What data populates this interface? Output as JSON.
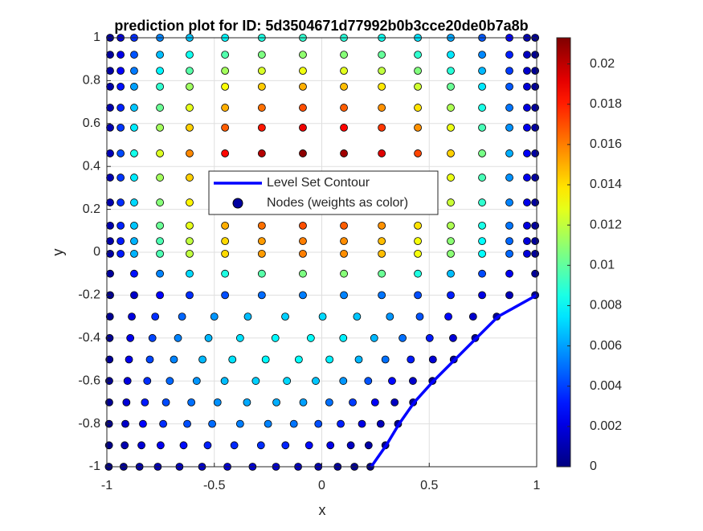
{
  "chart_data": {
    "type": "scatter",
    "title": "prediction plot for ID: 5d3504671d77992b0b3cce20de0b7a8b",
    "x_label": "x",
    "y_label": "y",
    "xlim": [
      -1,
      1
    ],
    "ylim": [
      -1,
      1
    ],
    "xticks": [
      -1,
      -0.5,
      0,
      0.5,
      1
    ],
    "yticks": [
      -1,
      -0.8,
      -0.6,
      -0.4,
      -0.2,
      0,
      0.2,
      0.4,
      0.6,
      0.8,
      1
    ],
    "grid": true,
    "colormap": "jet",
    "clim": [
      0,
      0.0213
    ],
    "colorbar_ticks": [
      0,
      0.002,
      0.004,
      0.006,
      0.008,
      0.01,
      0.012,
      0.014,
      0.016,
      0.018,
      0.02
    ],
    "legend_position": "upper center",
    "series": [
      {
        "name": "Level Set Contour",
        "type": "line",
        "color": "#0000ff",
        "x": [
          1,
          0.82,
          0.72,
          0.62,
          0.52,
          0.43,
          0.36,
          0.3,
          0.23
        ],
        "y": [
          -0.2,
          -0.3,
          -0.4,
          -0.5,
          -0.6,
          -0.7,
          -0.8,
          -0.9,
          -1
        ]
      },
      {
        "name": "Nodes (weights as color)",
        "type": "scatter",
        "color": "#0000a0",
        "x": [
          -0.985,
          -0.936,
          -0.873,
          -0.753,
          -0.615,
          -0.45,
          -0.279,
          -0.088,
          0.103,
          0.279,
          0.447,
          0.6,
          0.746,
          0.873,
          0.955,
          0.993,
          -0.985,
          -0.936,
          -0.873,
          -0.753,
          -0.615,
          -0.45,
          -0.279,
          -0.088,
          0.103,
          0.279,
          0.447,
          0.6,
          0.746,
          0.873,
          0.955,
          0.993,
          -0.985,
          -0.936,
          -0.873,
          -0.753,
          -0.615,
          -0.45,
          -0.279,
          -0.088,
          0.103,
          0.279,
          0.447,
          0.6,
          0.746,
          0.873,
          0.955,
          0.993,
          -0.985,
          -0.936,
          -0.873,
          -0.753,
          -0.615,
          -0.45,
          -0.279,
          -0.088,
          0.103,
          0.279,
          0.447,
          0.6,
          0.746,
          0.873,
          0.955,
          0.993,
          -0.985,
          -0.936,
          -0.873,
          -0.753,
          -0.615,
          -0.45,
          -0.279,
          -0.088,
          0.103,
          0.279,
          0.447,
          0.6,
          0.746,
          0.873,
          0.955,
          0.993,
          -0.985,
          -0.936,
          -0.873,
          -0.753,
          -0.615,
          -0.45,
          -0.279,
          -0.088,
          0.103,
          0.279,
          0.447,
          0.6,
          0.746,
          0.873,
          0.955,
          0.993,
          -0.985,
          -0.936,
          -0.873,
          -0.753,
          -0.615,
          -0.45,
          -0.279,
          -0.088,
          0.103,
          0.279,
          0.447,
          0.6,
          0.746,
          0.873,
          0.955,
          0.993,
          -0.985,
          -0.936,
          -0.873,
          -0.753,
          -0.615,
          -0.45,
          -0.279,
          -0.088,
          0.103,
          0.279,
          0.447,
          0.6,
          0.746,
          0.873,
          0.955,
          0.993,
          -0.985,
          -0.936,
          -0.873,
          -0.753,
          -0.615,
          -0.45,
          -0.279,
          -0.088,
          0.103,
          0.279,
          0.447,
          0.6,
          0.746,
          0.873,
          0.955,
          0.993,
          -0.985,
          -0.936,
          -0.873,
          -0.753,
          -0.615,
          -0.45,
          -0.279,
          -0.088,
          0.103,
          0.279,
          0.447,
          0.6,
          0.746,
          0.873,
          0.955,
          0.993,
          -0.985,
          -0.936,
          -0.873,
          -0.753,
          -0.615,
          -0.45,
          -0.279,
          -0.088,
          0.103,
          0.279,
          0.447,
          0.6,
          0.746,
          0.873,
          0.955,
          0.993,
          -0.985,
          -0.936,
          -0.873,
          -0.753,
          -0.615,
          -0.45,
          -0.279,
          -0.088,
          0.103,
          0.279,
          0.447,
          0.6,
          0.746,
          0.873,
          0.955,
          0.993,
          -0.985,
          -0.873,
          -0.753,
          -0.615,
          -0.45,
          -0.279,
          -0.088,
          0.103,
          0.279,
          0.447,
          0.6,
          0.746,
          0.873,
          0.993,
          -0.985,
          -0.873,
          -0.753,
          -0.615,
          -0.45,
          -0.279,
          -0.088,
          0.103,
          0.279,
          0.447,
          0.6,
          0.746,
          0.873,
          0.993,
          -0.986,
          -0.884,
          -0.775,
          -0.65,
          -0.5,
          -0.344,
          -0.17,
          0.004,
          0.164,
          0.317,
          0.456,
          0.589,
          0.704,
          0.814,
          -0.987,
          -0.891,
          -0.788,
          -0.669,
          -0.527,
          -0.38,
          -0.216,
          -0.051,
          0.1,
          0.244,
          0.376,
          0.502,
          0.611,
          0.714,
          -0.988,
          -0.897,
          -0.8,
          -0.688,
          -0.555,
          -0.416,
          -0.261,
          -0.107,
          0.036,
          0.172,
          0.296,
          0.414,
          0.517,
          0.614,
          -0.989,
          -0.904,
          -0.812,
          -0.707,
          -0.582,
          -0.452,
          -0.307,
          -0.162,
          -0.028,
          0.1,
          0.216,
          0.327,
          0.424,
          0.515,
          -0.989,
          -0.909,
          -0.823,
          -0.725,
          -0.607,
          -0.485,
          -0.348,
          -0.211,
          -0.086,
          0.035,
          0.144,
          0.248,
          0.339,
          0.425,
          -0.99,
          -0.914,
          -0.832,
          -0.738,
          -0.626,
          -0.51,
          -0.38,
          -0.25,
          -0.13,
          -0.016,
          0.088,
          0.187,
          0.274,
          0.355,
          -0.99,
          -0.917,
          -0.839,
          -0.75,
          -0.643,
          -0.531,
          -0.407,
          -0.283,
          -0.169,
          -0.059,
          0.04,
          0.135,
          0.218,
          0.296,
          -0.991,
          -0.922,
          -0.848,
          -0.763,
          -0.662,
          -0.557,
          -0.439,
          -0.322,
          -0.213,
          -0.11,
          -0.016,
          0.074,
          0.152,
          0.226
        ],
        "y": [
          1,
          1,
          1,
          1,
          1,
          1,
          1,
          1,
          1,
          1,
          1,
          1,
          1,
          1,
          1,
          1,
          0.921,
          0.921,
          0.921,
          0.921,
          0.921,
          0.921,
          0.921,
          0.921,
          0.921,
          0.921,
          0.921,
          0.921,
          0.921,
          0.921,
          0.921,
          0.921,
          0.846,
          0.846,
          0.846,
          0.846,
          0.846,
          0.846,
          0.846,
          0.846,
          0.846,
          0.846,
          0.846,
          0.846,
          0.846,
          0.846,
          0.846,
          0.846,
          0.772,
          0.772,
          0.772,
          0.772,
          0.772,
          0.772,
          0.772,
          0.772,
          0.772,
          0.772,
          0.772,
          0.772,
          0.772,
          0.772,
          0.772,
          0.772,
          0.674,
          0.674,
          0.674,
          0.674,
          0.674,
          0.674,
          0.674,
          0.674,
          0.674,
          0.674,
          0.674,
          0.674,
          0.674,
          0.674,
          0.674,
          0.674,
          0.581,
          0.581,
          0.581,
          0.581,
          0.581,
          0.581,
          0.581,
          0.581,
          0.581,
          0.581,
          0.581,
          0.581,
          0.581,
          0.581,
          0.581,
          0.581,
          0.461,
          0.461,
          0.461,
          0.461,
          0.461,
          0.461,
          0.461,
          0.461,
          0.461,
          0.461,
          0.461,
          0.461,
          0.461,
          0.461,
          0.461,
          0.461,
          0.348,
          0.348,
          0.348,
          0.348,
          0.348,
          0.348,
          0.348,
          0.348,
          0.348,
          0.348,
          0.348,
          0.348,
          0.348,
          0.348,
          0.348,
          0.348,
          0.232,
          0.232,
          0.232,
          0.232,
          0.232,
          0.232,
          0.232,
          0.232,
          0.232,
          0.232,
          0.232,
          0.232,
          0.232,
          0.232,
          0.232,
          0.232,
          0.124,
          0.124,
          0.124,
          0.124,
          0.124,
          0.124,
          0.124,
          0.124,
          0.124,
          0.124,
          0.124,
          0.124,
          0.124,
          0.124,
          0.124,
          0.124,
          0.052,
          0.052,
          0.052,
          0.052,
          0.052,
          0.052,
          0.052,
          0.052,
          0.052,
          0.052,
          0.052,
          0.052,
          0.052,
          0.052,
          0.052,
          0.052,
          -0.007,
          -0.007,
          -0.007,
          -0.007,
          -0.007,
          -0.007,
          -0.007,
          -0.007,
          -0.007,
          -0.007,
          -0.007,
          -0.007,
          -0.007,
          -0.007,
          -0.007,
          -0.007,
          -0.1,
          -0.1,
          -0.1,
          -0.1,
          -0.1,
          -0.1,
          -0.1,
          -0.1,
          -0.1,
          -0.1,
          -0.1,
          -0.1,
          -0.1,
          -0.1,
          -0.2,
          -0.2,
          -0.2,
          -0.2,
          -0.2,
          -0.2,
          -0.2,
          -0.2,
          -0.2,
          -0.2,
          -0.2,
          -0.2,
          -0.2,
          -0.2,
          -0.3,
          -0.3,
          -0.3,
          -0.3,
          -0.3,
          -0.3,
          -0.3,
          -0.3,
          -0.3,
          -0.3,
          -0.3,
          -0.3,
          -0.3,
          -0.3,
          -0.4,
          -0.4,
          -0.4,
          -0.4,
          -0.4,
          -0.4,
          -0.4,
          -0.4,
          -0.4,
          -0.4,
          -0.4,
          -0.4,
          -0.4,
          -0.4,
          -0.5,
          -0.5,
          -0.5,
          -0.5,
          -0.5,
          -0.5,
          -0.5,
          -0.5,
          -0.5,
          -0.5,
          -0.5,
          -0.5,
          -0.5,
          -0.5,
          -0.6,
          -0.6,
          -0.6,
          -0.6,
          -0.6,
          -0.6,
          -0.6,
          -0.6,
          -0.6,
          -0.6,
          -0.6,
          -0.6,
          -0.6,
          -0.6,
          -0.7,
          -0.7,
          -0.7,
          -0.7,
          -0.7,
          -0.7,
          -0.7,
          -0.7,
          -0.7,
          -0.7,
          -0.7,
          -0.7,
          -0.7,
          -0.7,
          -0.8,
          -0.8,
          -0.8,
          -0.8,
          -0.8,
          -0.8,
          -0.8,
          -0.8,
          -0.8,
          -0.8,
          -0.8,
          -0.8,
          -0.8,
          -0.8,
          -0.9,
          -0.9,
          -0.9,
          -0.9,
          -0.9,
          -0.9,
          -0.9,
          -0.9,
          -0.9,
          -0.9,
          -0.9,
          -0.9,
          -0.9,
          -0.9,
          -1,
          -1,
          -1,
          -1,
          -1,
          -1,
          -1,
          -1,
          -1,
          -1,
          -1,
          -1,
          -1,
          -1
        ],
        "values": [
          0.0005,
          0.0018,
          0.0036,
          0.0054,
          0.0068,
          0.0079,
          0.0086,
          0.009,
          0.0088,
          0.0083,
          0.0074,
          0.0061,
          0.0045,
          0.0027,
          0.0011,
          0.0004,
          0.0006,
          0.0022,
          0.0044,
          0.0066,
          0.0083,
          0.0097,
          0.0106,
          0.011,
          0.0108,
          0.0101,
          0.009,
          0.0075,
          0.0055,
          0.0033,
          0.0013,
          0.0004,
          0.0007,
          0.0026,
          0.0052,
          0.0078,
          0.0098,
          0.0114,
          0.0125,
          0.013,
          0.0127,
          0.012,
          0.0107,
          0.0088,
          0.0065,
          0.0039,
          0.0016,
          0.0005,
          0.0008,
          0.003,
          0.006,
          0.009,
          0.0113,
          0.0132,
          0.0144,
          0.015,
          0.0147,
          0.0138,
          0.0123,
          0.0102,
          0.0075,
          0.0045,
          0.0018,
          0.0006,
          0.0009,
          0.0034,
          0.0068,
          0.0102,
          0.0128,
          0.015,
          0.0163,
          0.017,
          0.0167,
          0.0156,
          0.0139,
          0.0116,
          0.0085,
          0.0051,
          0.002,
          0.0007,
          0.001,
          0.0038,
          0.0076,
          0.0114,
          0.0143,
          0.0167,
          0.0182,
          0.019,
          0.0186,
          0.0175,
          0.0156,
          0.0129,
          0.0095,
          0.0057,
          0.0023,
          0.0008,
          0.0011,
          0.0042,
          0.0084,
          0.0126,
          0.0158,
          0.0185,
          0.0202,
          0.021,
          0.0206,
          0.0193,
          0.0172,
          0.0143,
          0.0105,
          0.0063,
          0.0025,
          0.0008,
          0.001,
          0.0038,
          0.0076,
          0.0114,
          0.0143,
          0.0167,
          0.0182,
          0.019,
          0.0186,
          0.0175,
          0.0156,
          0.0129,
          0.0095,
          0.0057,
          0.0023,
          0.0008,
          0.0009,
          0.0036,
          0.0072,
          0.0108,
          0.0135,
          0.0158,
          0.0173,
          0.018,
          0.0176,
          0.0166,
          0.0148,
          0.0122,
          0.009,
          0.0054,
          0.0022,
          0.0007,
          0.0009,
          0.0034,
          0.0068,
          0.0102,
          0.0128,
          0.015,
          0.0163,
          0.017,
          0.0167,
          0.0156,
          0.0139,
          0.0116,
          0.0085,
          0.0051,
          0.002,
          0.0007,
          0.0008,
          0.0032,
          0.0064,
          0.0096,
          0.012,
          0.0141,
          0.0154,
          0.016,
          0.0157,
          0.0147,
          0.0131,
          0.0109,
          0.008,
          0.0048,
          0.0019,
          0.0006,
          0.0008,
          0.0032,
          0.0064,
          0.0096,
          0.012,
          0.0141,
          0.0154,
          0.016,
          0.0157,
          0.0147,
          0.0131,
          0.0109,
          0.008,
          0.0048,
          0.0019,
          0.0006,
          0.0006,
          0.003,
          0.0054,
          0.0072,
          0.0086,
          0.0098,
          0.0106,
          0.0108,
          0.0102,
          0.0086,
          0.0066,
          0.0042,
          0.0024,
          0.0006,
          0.0003,
          0.0015,
          0.0027,
          0.0036,
          0.0043,
          0.0049,
          0.0053,
          0.0054,
          0.0051,
          0.0043,
          0.0033,
          0.0021,
          0.0012,
          0.0003,
          0.0004,
          0.002,
          0.0036,
          0.0048,
          0.0058,
          0.0066,
          0.007,
          0.0072,
          0.0068,
          0.0058,
          0.0044,
          0.0028,
          0.0016,
          0.0004,
          0.0005,
          0.0023,
          0.0041,
          0.0054,
          0.0065,
          0.0074,
          0.0079,
          0.0081,
          0.0077,
          0.0065,
          0.005,
          0.0032,
          0.0018,
          0.0005,
          0.0005,
          0.0023,
          0.0041,
          0.0054,
          0.0065,
          0.0074,
          0.0079,
          0.0081,
          0.0077,
          0.0065,
          0.005,
          0.0032,
          0.0018,
          0.0005,
          0.0004,
          0.002,
          0.0036,
          0.0048,
          0.0058,
          0.0066,
          0.007,
          0.0072,
          0.0068,
          0.0058,
          0.0044,
          0.0028,
          0.0016,
          0.0004,
          0.0004,
          0.0018,
          0.0032,
          0.0042,
          0.005,
          0.0057,
          0.0062,
          0.0063,
          0.006,
          0.005,
          0.0039,
          0.0025,
          0.0014,
          0.0004,
          0.0003,
          0.0015,
          0.0027,
          0.0036,
          0.0043,
          0.0049,
          0.0053,
          0.0054,
          0.0051,
          0.0043,
          0.0033,
          0.0021,
          0.0012,
          0.0003,
          0.0002,
          0.001,
          0.0018,
          0.0024,
          0.0029,
          0.0033,
          0.0035,
          0.0036,
          0.0034,
          0.0029,
          0.0022,
          0.0014,
          0.0008,
          0.0002,
          0.0001,
          0.0005,
          0.0009,
          0.0012,
          0.0014,
          0.0016,
          0.0018,
          0.0018,
          0.0017,
          0.0014,
          0.0011,
          0.0007,
          0.0004,
          0.0001
        ]
      }
    ]
  }
}
